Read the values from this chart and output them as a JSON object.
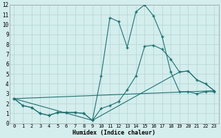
{
  "xlabel": "Humidex (Indice chaleur)",
  "bg_color": "#d4eded",
  "grid_color": "#b8d8d8",
  "line_color": "#1e7070",
  "xlim": [
    -0.5,
    23.5
  ],
  "ylim": [
    0,
    12
  ],
  "xticks": [
    0,
    1,
    2,
    3,
    4,
    5,
    6,
    7,
    8,
    9,
    10,
    11,
    12,
    13,
    14,
    15,
    16,
    17,
    18,
    19,
    20,
    21,
    22,
    23
  ],
  "yticks": [
    0,
    1,
    2,
    3,
    4,
    5,
    6,
    7,
    8,
    9,
    10,
    11,
    12
  ],
  "series": [
    {
      "x": [
        0,
        1,
        2,
        3,
        4,
        5,
        6,
        7,
        8,
        9,
        10,
        11,
        12,
        13,
        14,
        15,
        16,
        17,
        18,
        19,
        20,
        21,
        22,
        23
      ],
      "y": [
        2.5,
        1.8,
        1.6,
        1.0,
        0.8,
        1.1,
        1.1,
        1.1,
        1.0,
        0.3,
        4.8,
        10.7,
        10.3,
        7.7,
        11.3,
        12.0,
        10.9,
        8.8,
        5.2,
        3.2,
        3.2,
        3.0,
        3.2,
        3.2
      ]
    },
    {
      "x": [
        0,
        1,
        2,
        3,
        4,
        5,
        6,
        7,
        8,
        9,
        10,
        11,
        12,
        13,
        14,
        15,
        16,
        17,
        18,
        19,
        20,
        21,
        22,
        23
      ],
      "y": [
        2.5,
        1.8,
        1.6,
        1.0,
        0.8,
        1.1,
        1.1,
        1.1,
        1.0,
        0.3,
        1.5,
        1.8,
        2.2,
        3.4,
        4.8,
        7.8,
        7.9,
        7.5,
        6.5,
        5.2,
        5.3,
        4.4,
        4.0,
        3.3
      ]
    },
    {
      "x": [
        0,
        23
      ],
      "y": [
        2.5,
        3.3
      ],
      "no_marker": true
    },
    {
      "x": [
        0,
        9,
        19,
        20,
        21,
        22,
        23
      ],
      "y": [
        2.5,
        0.3,
        5.2,
        5.3,
        4.4,
        4.0,
        3.3
      ],
      "no_marker": true
    }
  ]
}
